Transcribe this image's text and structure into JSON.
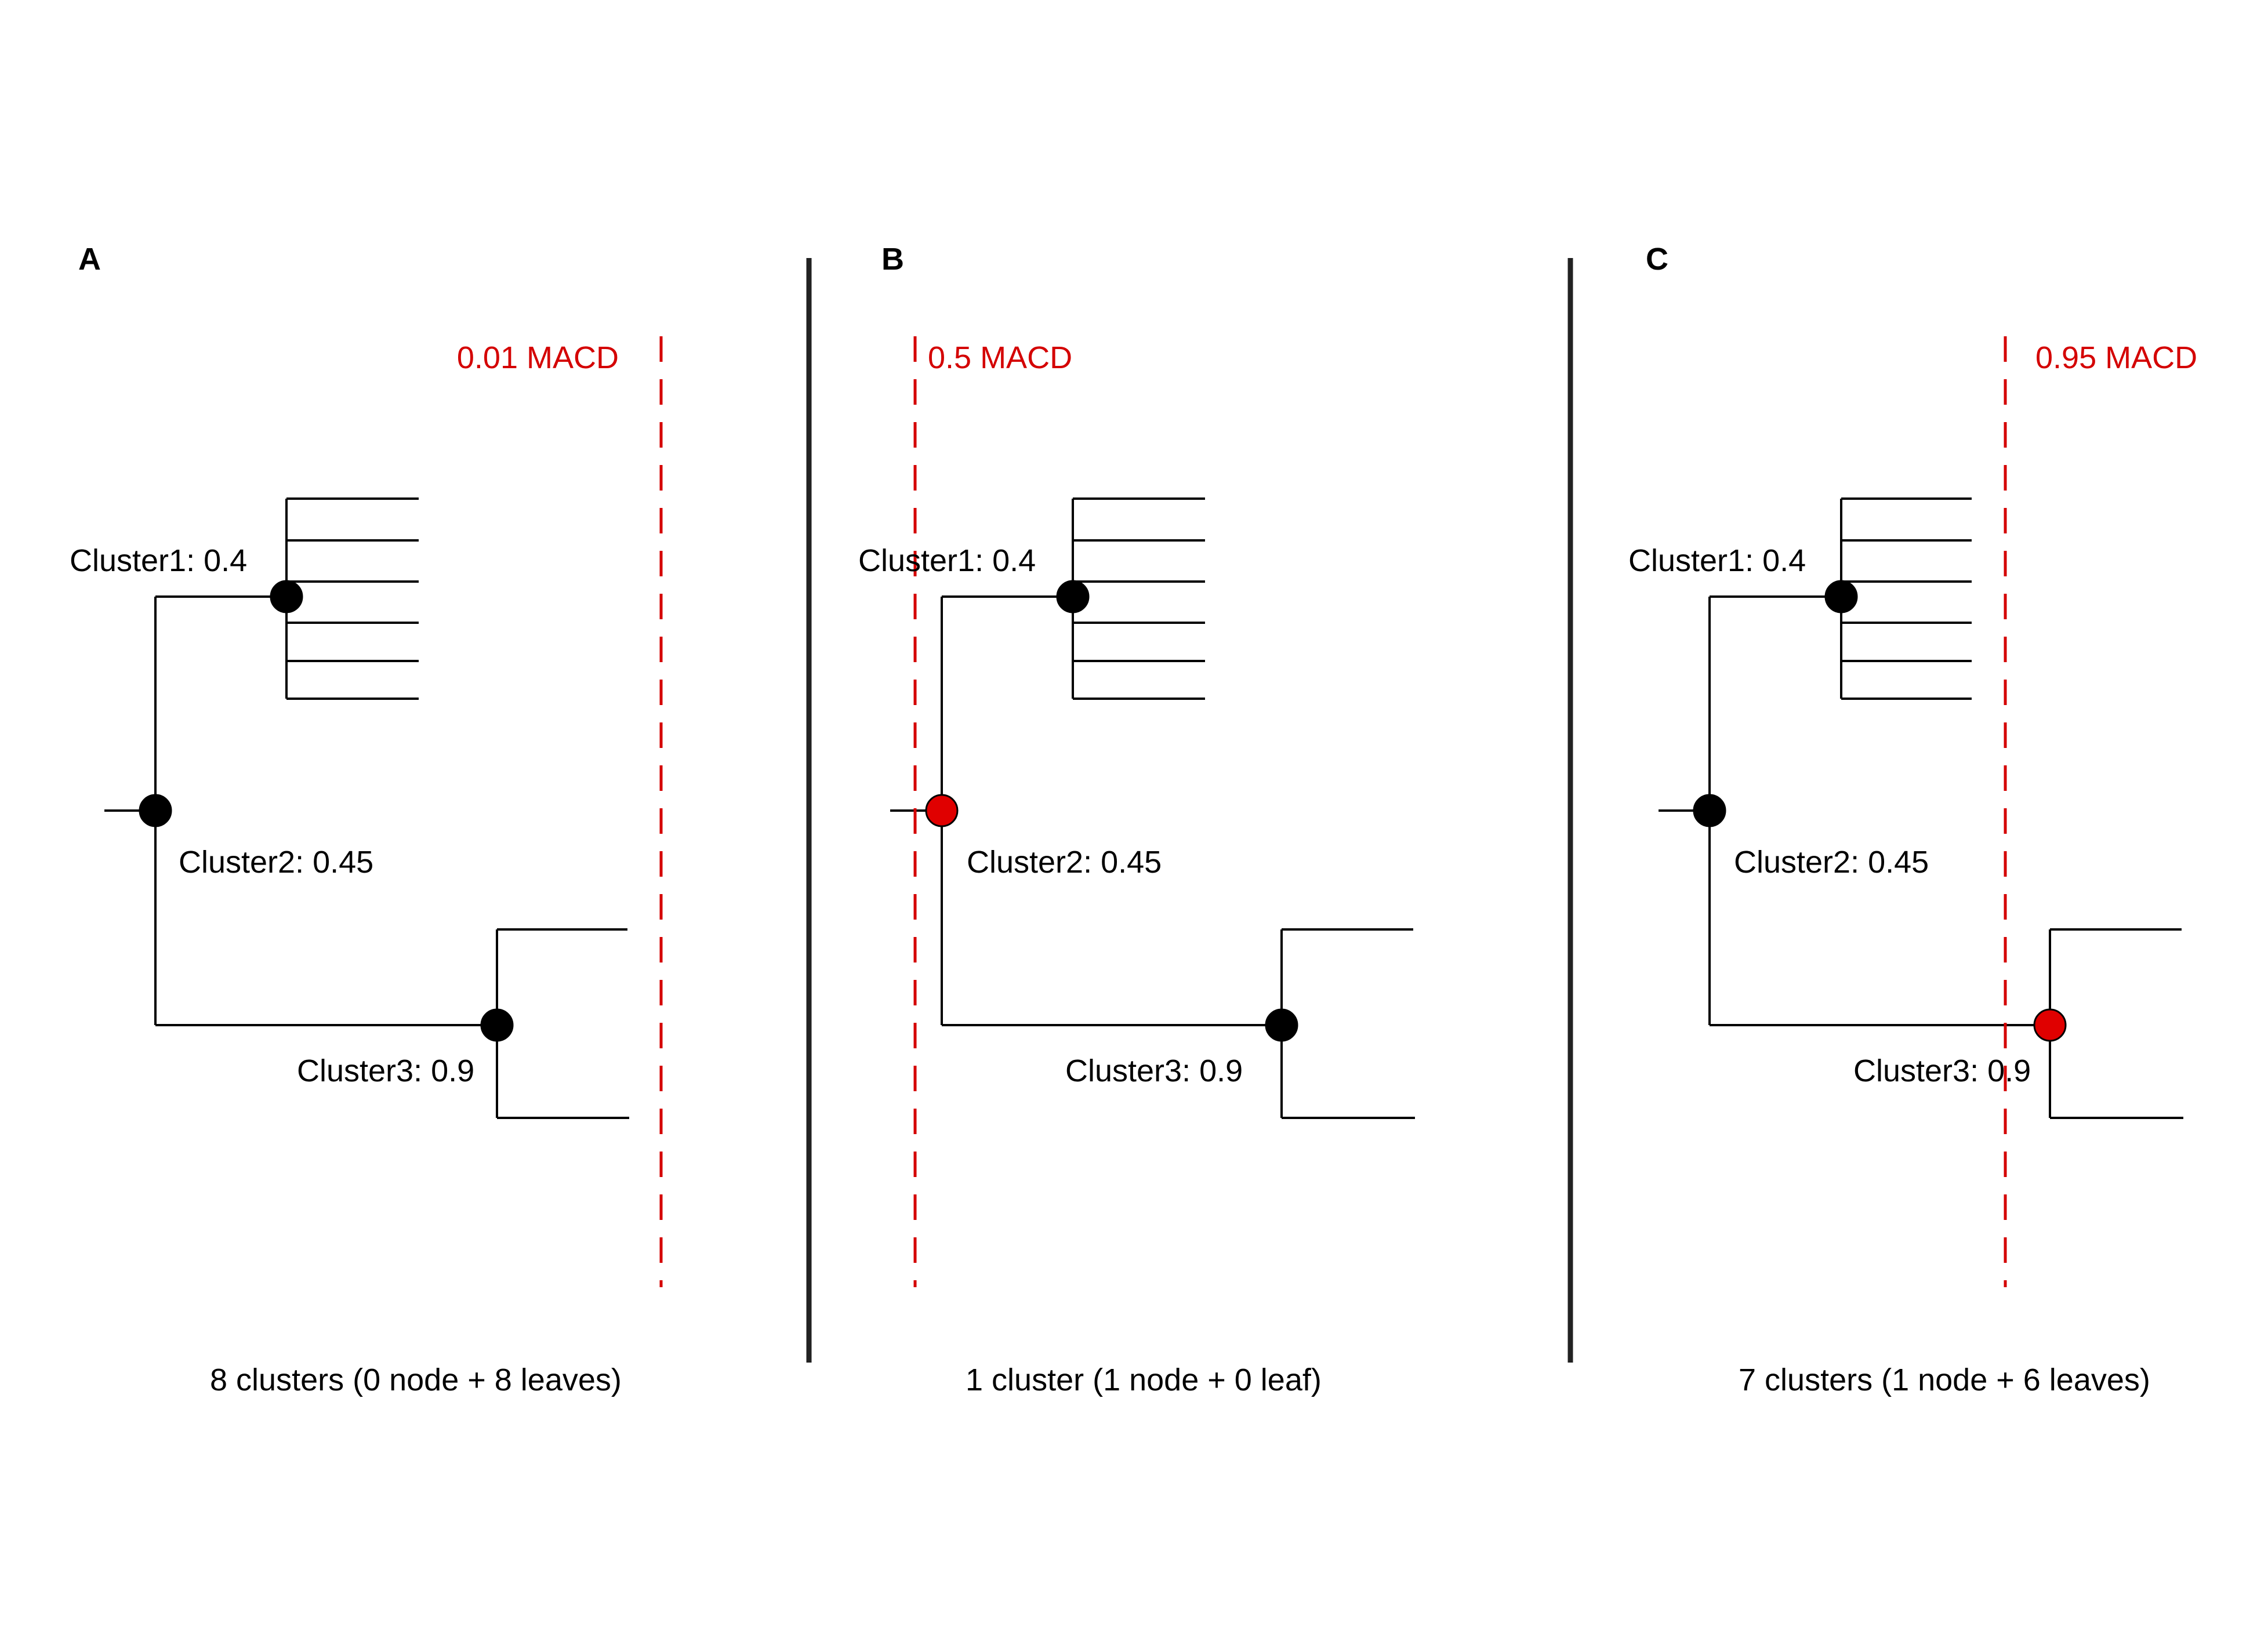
{
  "panels": [
    {
      "letter": "A",
      "threshold_label": "0.01 MACD",
      "nodes": [
        {
          "label": "Cluster1: 0.4",
          "highlighted": false
        },
        {
          "label": "Cluster2: 0.45",
          "highlighted": false
        },
        {
          "label": "Cluster3: 0.9",
          "highlighted": false
        }
      ],
      "summary": "8 clusters (0 node + 8 leaves)"
    },
    {
      "letter": "B",
      "threshold_label": "0.5 MACD",
      "nodes": [
        {
          "label": "Cluster1: 0.4",
          "highlighted": false
        },
        {
          "label": "Cluster2: 0.45",
          "highlighted": true
        },
        {
          "label": "Cluster3: 0.9",
          "highlighted": false
        }
      ],
      "summary": "1 cluster (1 node + 0 leaf)"
    },
    {
      "letter": "C",
      "threshold_label": "0.95 MACD",
      "nodes": [
        {
          "label": "Cluster1: 0.4",
          "highlighted": false
        },
        {
          "label": "Cluster2: 0.45",
          "highlighted": false
        },
        {
          "label": "Cluster3: 0.9",
          "highlighted": true
        }
      ],
      "summary": "7 clusters (1 node + 6 leaves)"
    }
  ],
  "colors": {
    "highlight": "#e00000",
    "node": "#000000",
    "threshold": "#d40000"
  }
}
